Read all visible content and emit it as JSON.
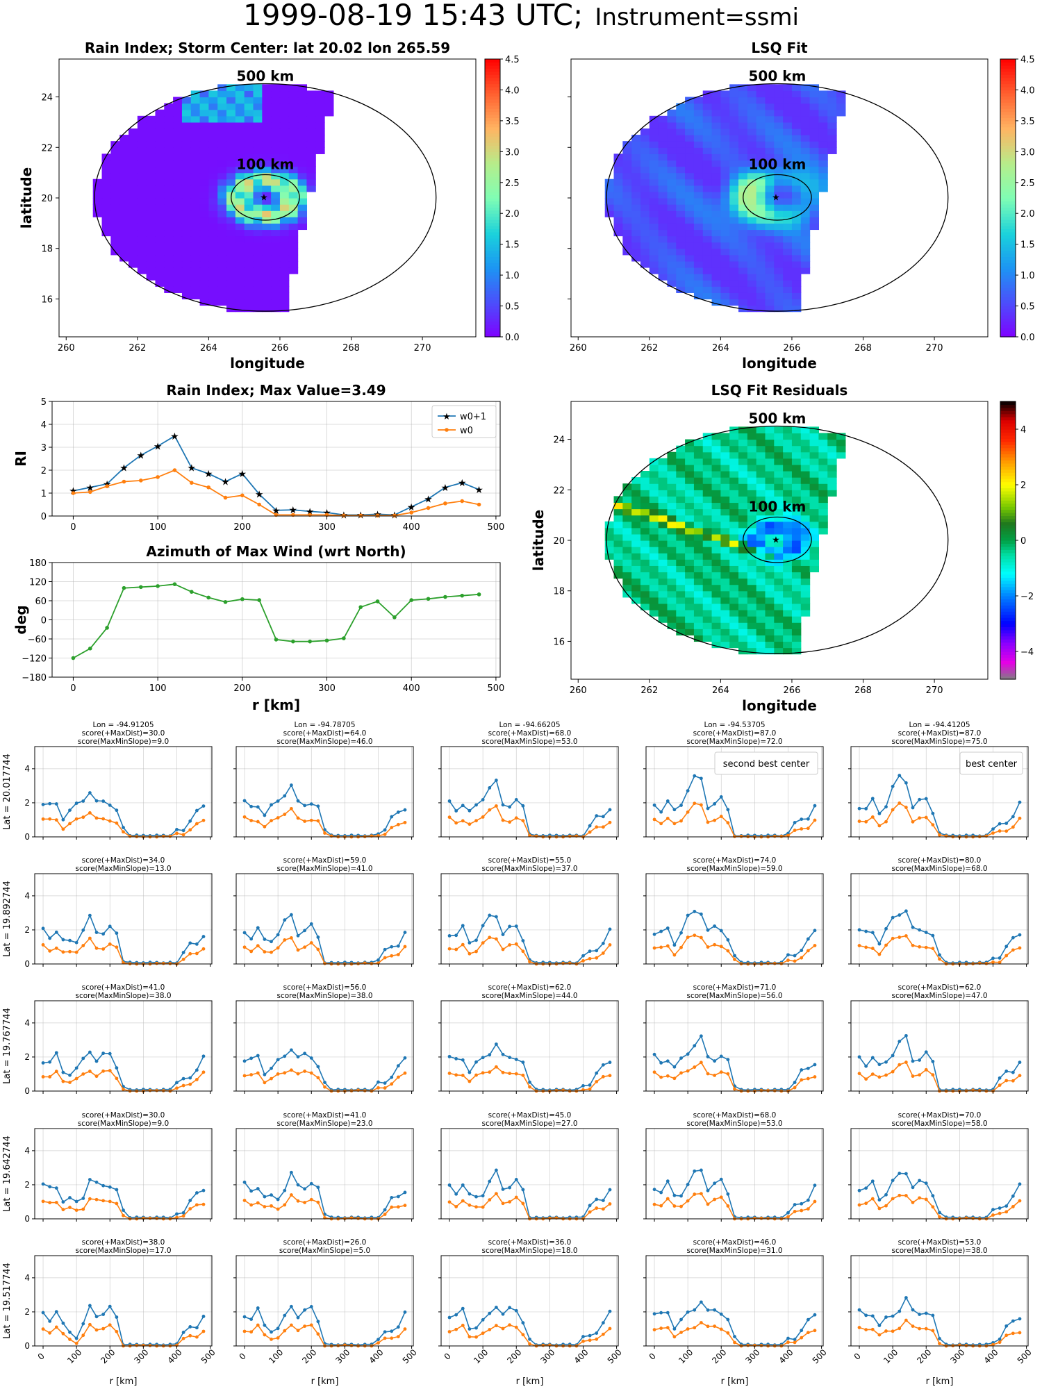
{
  "suptitle": {
    "date": "1999-08-19 15:43 UTC;",
    "instrument": "Instrument=ssmi"
  },
  "map_annotations": {
    "r500": "500 km",
    "r100": "100 km"
  },
  "small_labels": {
    "best": "best center",
    "second": "second best center"
  },
  "colors": {
    "blue": "#1f77b4",
    "orange": "#ff7f0e",
    "green": "#2ca02c",
    "best": "#800080",
    "second": "#ff0000"
  },
  "chart_data": [
    {
      "type": "heatmap",
      "id": "rain_index_map",
      "title": "Rain Index; Storm Center: lat 20.02 lon 265.59",
      "xlabel": "longitude",
      "ylabel": "latitude",
      "xlim": [
        259.8,
        271.5
      ],
      "ylim": [
        14.5,
        25.5
      ],
      "xticks": [
        "260",
        "262",
        "264",
        "266",
        "268",
        "270"
      ],
      "yticks": [
        "16",
        "18",
        "20",
        "22",
        "24"
      ],
      "center": [
        265.59,
        20.02
      ],
      "colorbar": {
        "min": 0,
        "max": 4.5,
        "ticks": [
          "0.0",
          "0.5",
          "1.0",
          "1.5",
          "2.0",
          "2.5",
          "3.0",
          "3.5",
          "4.0",
          "4.5"
        ],
        "cmap": "rainbow"
      }
    },
    {
      "type": "heatmap",
      "id": "lsq_fit_map",
      "title": "LSQ Fit",
      "xlabel": "longitude",
      "ylabel": "",
      "xlim": [
        259.8,
        271.5
      ],
      "ylim": [
        14.5,
        25.5
      ],
      "xticks": [
        "260",
        "262",
        "264",
        "266",
        "268",
        "270"
      ],
      "yticks": [],
      "colorbar": {
        "min": 0,
        "max": 4.5,
        "ticks": [
          "0.0",
          "0.5",
          "1.0",
          "1.5",
          "2.0",
          "2.5",
          "3.0",
          "3.5",
          "4.0",
          "4.5"
        ],
        "cmap": "rainbow"
      }
    },
    {
      "type": "line",
      "id": "rain_index_profile",
      "title": "Rain Index; Max Value=3.49",
      "xlabel": "",
      "ylabel": "RI",
      "xlim": [
        -25,
        505
      ],
      "ylim": [
        0,
        5
      ],
      "xticks": [
        "0",
        "100",
        "200",
        "300",
        "400",
        "500"
      ],
      "yticks": [
        "0",
        "1",
        "2",
        "3",
        "4",
        "5"
      ],
      "legend": "top-right",
      "x": [
        0,
        20,
        40,
        60,
        80,
        100,
        120,
        140,
        160,
        180,
        200,
        220,
        240,
        260,
        280,
        300,
        320,
        340,
        360,
        380,
        400,
        420,
        440,
        460,
        480
      ],
      "series": [
        {
          "name": "w0+1",
          "values": [
            1.1,
            1.25,
            1.4,
            2.1,
            2.65,
            3.05,
            3.49,
            2.1,
            1.85,
            1.5,
            1.85,
            0.95,
            0.25,
            0.27,
            0.2,
            0.15,
            0.05,
            0.05,
            0.08,
            0.05,
            0.4,
            0.75,
            1.25,
            1.45,
            1.15
          ]
        },
        {
          "name": "w0",
          "values": [
            1.0,
            1.05,
            1.3,
            1.5,
            1.55,
            1.7,
            2.0,
            1.45,
            1.25,
            0.8,
            0.9,
            0.5,
            0.05,
            0.05,
            0.05,
            0.05,
            0.02,
            0.02,
            0.02,
            0.02,
            0.15,
            0.35,
            0.55,
            0.65,
            0.5
          ]
        }
      ]
    },
    {
      "type": "line",
      "id": "azimuth_max_wind",
      "title": "Azimuth of Max Wind (wrt North)",
      "xlabel": "r [km]",
      "ylabel": "deg",
      "xlim": [
        -25,
        505
      ],
      "ylim": [
        -180,
        180
      ],
      "xticks": [
        "0",
        "100",
        "200",
        "300",
        "400",
        "500"
      ],
      "yticks": [
        "−180",
        "−120",
        "−60",
        "0",
        "60",
        "120",
        "180"
      ],
      "x": [
        0,
        20,
        40,
        60,
        80,
        100,
        120,
        140,
        160,
        180,
        200,
        220,
        240,
        260,
        280,
        300,
        320,
        340,
        360,
        380,
        400,
        420,
        440,
        460,
        480
      ],
      "series": [
        {
          "name": "",
          "values": [
            -120,
            -90,
            -25,
            100,
            103,
            106,
            112,
            88,
            70,
            56,
            65,
            62,
            -62,
            -68,
            -68,
            -65,
            -58,
            40,
            58,
            8,
            62,
            66,
            72,
            76,
            80
          ]
        }
      ]
    },
    {
      "type": "heatmap",
      "id": "lsq_residuals_map",
      "title": "LSQ Fit Residuals",
      "xlabel": "longitude",
      "ylabel": "latitude",
      "xlim": [
        259.8,
        271.5
      ],
      "ylim": [
        14.5,
        25.5
      ],
      "xticks": [
        "260",
        "262",
        "264",
        "266",
        "268",
        "270"
      ],
      "yticks": [
        "16",
        "18",
        "20",
        "22",
        "24"
      ],
      "colorbar": {
        "min": -5,
        "max": 5,
        "ticks": [
          "−4",
          "−2",
          "0",
          "2",
          "4"
        ],
        "cmap": "gist_ncar"
      }
    }
  ],
  "small_grid": {
    "xticks": [
      "0",
      "100",
      "200",
      "300",
      "400",
      "500"
    ],
    "yticks": [
      "0",
      "2",
      "4"
    ],
    "xlabel": "r [km]",
    "rows": [
      {
        "lat_label": "Lat = 20.017744",
        "cells": [
          {
            "lon": "Lon = -94.91205",
            "s1": "score(+MaxDist)=30.0",
            "s2": "score(MaxMinSlope)=9.0"
          },
          {
            "lon": "Lon = -94.78705",
            "s1": "score(+MaxDist)=64.0",
            "s2": "score(MaxMinSlope)=46.0"
          },
          {
            "lon": "Lon = -94.66205",
            "s1": "score(+MaxDist)=68.0",
            "s2": "score(MaxMinSlope)=53.0"
          },
          {
            "lon": "Lon = -94.53705",
            "s1": "score(+MaxDist)=87.0",
            "s2": "score(MaxMinSlope)=72.0"
          },
          {
            "lon": "Lon = -94.41205",
            "s1": "score(+MaxDist)=87.0",
            "s2": "score(MaxMinSlope)=75.0"
          }
        ]
      },
      {
        "lat_label": "Lat = 19.892744",
        "cells": [
          {
            "s1": "score(+MaxDist)=34.0",
            "s2": "score(MaxMinSlope)=13.0"
          },
          {
            "s1": "score(+MaxDist)=59.0",
            "s2": "score(MaxMinSlope)=41.0"
          },
          {
            "s1": "score(+MaxDist)=55.0",
            "s2": "score(MaxMinSlope)=37.0"
          },
          {
            "s1": "score(+MaxDist)=74.0",
            "s2": "score(MaxMinSlope)=59.0"
          },
          {
            "s1": "score(+MaxDist)=80.0",
            "s2": "score(MaxMinSlope)=68.0"
          }
        ]
      },
      {
        "lat_label": "Lat = 19.767744",
        "cells": [
          {
            "s1": "score(+MaxDist)=41.0",
            "s2": "score(MaxMinSlope)=38.0"
          },
          {
            "s1": "score(+MaxDist)=56.0",
            "s2": "score(MaxMinSlope)=38.0"
          },
          {
            "s1": "score(+MaxDist)=62.0",
            "s2": "score(MaxMinSlope)=44.0"
          },
          {
            "s1": "score(+MaxDist)=71.0",
            "s2": "score(MaxMinSlope)=56.0"
          },
          {
            "s1": "score(+MaxDist)=62.0",
            "s2": "score(MaxMinSlope)=47.0"
          }
        ]
      },
      {
        "lat_label": "Lat = 19.642744",
        "cells": [
          {
            "s1": "score(+MaxDist)=30.0",
            "s2": "score(MaxMinSlope)=9.0"
          },
          {
            "s1": "score(+MaxDist)=41.0",
            "s2": "score(MaxMinSlope)=23.0"
          },
          {
            "s1": "score(+MaxDist)=45.0",
            "s2": "score(MaxMinSlope)=27.0"
          },
          {
            "s1": "score(+MaxDist)=68.0",
            "s2": "score(MaxMinSlope)=53.0"
          },
          {
            "s1": "score(+MaxDist)=70.0",
            "s2": "score(MaxMinSlope)=58.0"
          }
        ]
      },
      {
        "lat_label": "Lat = 19.517744",
        "cells": [
          {
            "s1": "score(+MaxDist)=38.0",
            "s2": "score(MaxMinSlope)=17.0"
          },
          {
            "s1": "score(+MaxDist)=26.0",
            "s2": "score(MaxMinSlope)=5.0"
          },
          {
            "s1": "score(+MaxDist)=36.0",
            "s2": "score(MaxMinSlope)=18.0"
          },
          {
            "s1": "score(+MaxDist)=46.0",
            "s2": "score(MaxMinSlope)=31.0"
          },
          {
            "s1": "score(+MaxDist)=53.0",
            "s2": "score(MaxMinSlope)=38.0"
          }
        ]
      }
    ]
  }
}
